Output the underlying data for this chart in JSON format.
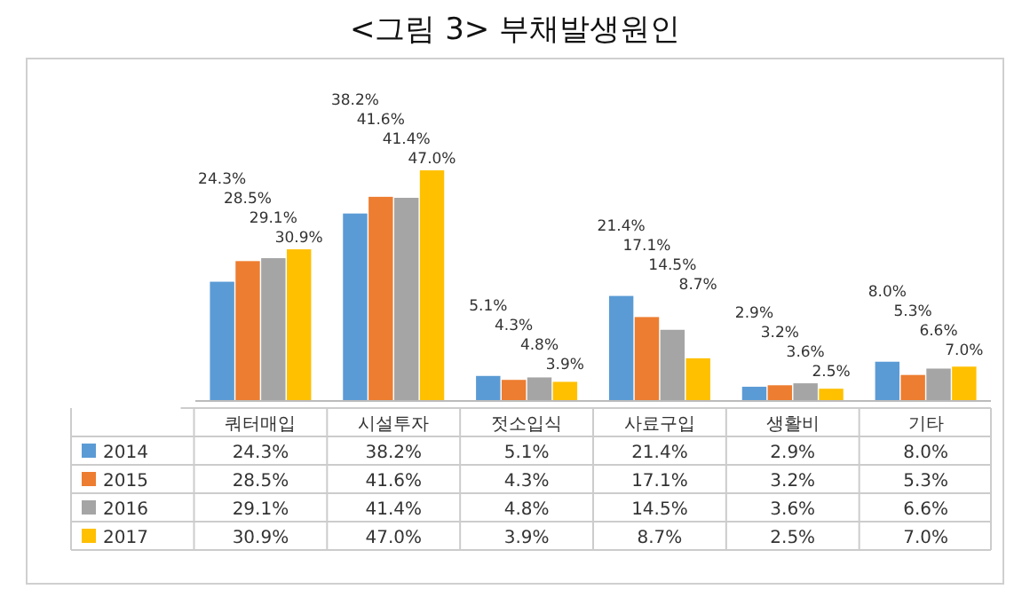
{
  "chart_data": {
    "type": "bar",
    "title": "<그림 3> 부채발생원인",
    "categories": [
      "쿼터매입",
      "시설투자",
      "젓소입식",
      "사료구입",
      "생활비",
      "기타"
    ],
    "series": [
      {
        "name": "2014",
        "color": "#5b9bd5",
        "values": [
          24.3,
          38.2,
          5.1,
          21.4,
          2.9,
          8.0
        ],
        "value_labels": [
          "24.3%",
          "38.2%",
          "5.1%",
          "21.4%",
          "2.9%",
          "8.0%"
        ]
      },
      {
        "name": "2015",
        "color": "#ed7d31",
        "values": [
          28.5,
          41.6,
          4.3,
          17.1,
          3.2,
          5.3
        ],
        "value_labels": [
          "28.5%",
          "41.6%",
          "4.3%",
          "17.1%",
          "3.2%",
          "5.3%"
        ]
      },
      {
        "name": "2016",
        "color": "#a5a5a5",
        "values": [
          29.1,
          41.4,
          4.8,
          14.5,
          3.6,
          6.6
        ],
        "value_labels": [
          "29.1%",
          "41.4%",
          "4.8%",
          "14.5%",
          "3.6%",
          "6.6%"
        ]
      },
      {
        "name": "2017",
        "color": "#ffc000",
        "values": [
          30.9,
          47.0,
          3.9,
          8.7,
          2.5,
          7.0
        ],
        "value_labels": [
          "30.9%",
          "47.0%",
          "3.9%",
          "8.7%",
          "2.5%",
          "7.0%"
        ]
      }
    ],
    "legend": "bottom",
    "grid": false
  }
}
